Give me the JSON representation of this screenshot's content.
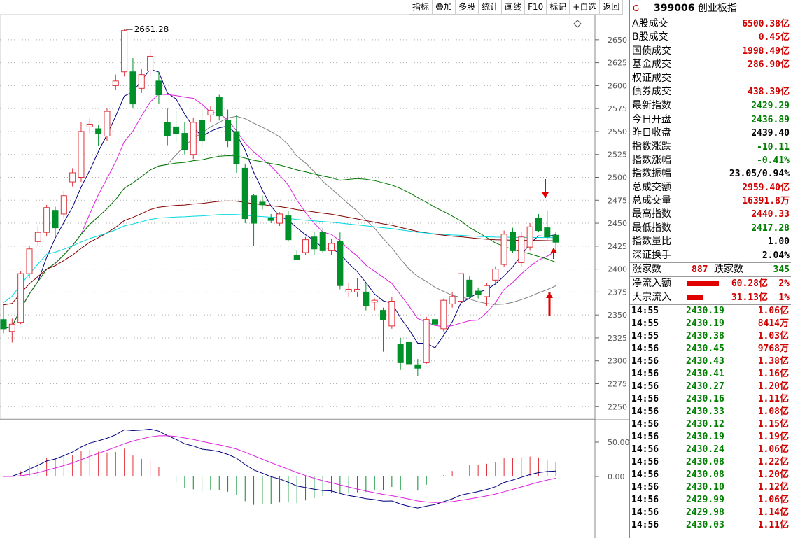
{
  "toolbar": {
    "items": [
      "指标",
      "叠加",
      "多股",
      "统计",
      "画线",
      "F10",
      "标记",
      "+自选",
      "返回"
    ]
  },
  "chart": {
    "high_label": "2661.28",
    "y_ticks": [
      "2650",
      "2625",
      "2600",
      "2575",
      "2550",
      "2525",
      "2500",
      "2475",
      "2450",
      "2425",
      "2400",
      "2375",
      "2350",
      "2325",
      "2300",
      "2275",
      "2250"
    ],
    "macd_ticks": [
      "50.00",
      "0.00"
    ]
  },
  "colors": {
    "up": "#e0303a",
    "down": "#00902a",
    "ma5": "#000080",
    "ma10": "#e020e0",
    "ma20": "#808080",
    "ma60": "#007800",
    "ma120": "#800000",
    "ma250": "#00d8e0"
  },
  "panel": {
    "code": "399006",
    "name": "创业板指",
    "g": "G",
    "section1": [
      {
        "label": "A股成交",
        "value": "6500.38亿",
        "color": "red"
      },
      {
        "label": "B股成交",
        "value": "0.45亿",
        "color": "red"
      },
      {
        "label": "国债成交",
        "value": "1998.49亿",
        "color": "red"
      },
      {
        "label": "基金成交",
        "value": "286.90亿",
        "color": "red"
      },
      {
        "label": "权证成交",
        "value": "",
        "color": "red"
      },
      {
        "label": "债券成交",
        "value": "438.39亿",
        "color": "red"
      }
    ],
    "section2": [
      {
        "label": "最新指数",
        "value": "2429.29",
        "color": "grn"
      },
      {
        "label": "今日开盘",
        "value": "2436.89",
        "color": "grn"
      },
      {
        "label": "昨日收盘",
        "value": "2439.40",
        "color": "blk"
      },
      {
        "label": "指数涨跌",
        "value": "-10.11",
        "color": "grn"
      },
      {
        "label": "指数涨幅",
        "value": "-0.41%",
        "color": "grn"
      },
      {
        "label": "指数振幅",
        "value": "23.05/0.94%",
        "color": "blk"
      },
      {
        "label": "总成交额",
        "value": "2959.40亿",
        "color": "red"
      },
      {
        "label": "总成交量",
        "value": "16391.8万",
        "color": "red"
      },
      {
        "label": "最高指数",
        "value": "2440.33",
        "color": "red"
      },
      {
        "label": "最低指数",
        "value": "2417.28",
        "color": "grn"
      },
      {
        "label": "指数量比",
        "value": "1.00",
        "color": "blk"
      },
      {
        "label": "深证换手",
        "value": "2.04%",
        "color": "blk"
      }
    ],
    "breadth": {
      "up_label": "涨家数",
      "up_count": "887",
      "down_label": "跌家数",
      "down_count": "345"
    },
    "flows": [
      {
        "label": "净流入额",
        "value": "60.28亿",
        "pct": "2%",
        "bar": 0.6
      },
      {
        "label": "大宗流入",
        "value": "31.13亿",
        "pct": "1%",
        "bar": 0.3
      }
    ],
    "ticks": [
      {
        "time": "14:55",
        "price": "2430.19",
        "vol": "1.06亿"
      },
      {
        "time": "14:55",
        "price": "2430.19",
        "vol": "8414万"
      },
      {
        "time": "14:55",
        "price": "2430.38",
        "vol": "1.03亿"
      },
      {
        "time": "14:56",
        "price": "2430.45",
        "vol": "9768万"
      },
      {
        "time": "14:56",
        "price": "2430.43",
        "vol": "1.38亿"
      },
      {
        "time": "14:56",
        "price": "2430.41",
        "vol": "1.16亿"
      },
      {
        "time": "14:56",
        "price": "2430.27",
        "vol": "1.20亿"
      },
      {
        "time": "14:56",
        "price": "2430.16",
        "vol": "1.11亿"
      },
      {
        "time": "14:56",
        "price": "2430.33",
        "vol": "1.08亿"
      },
      {
        "time": "14:56",
        "price": "2430.12",
        "vol": "1.15亿"
      },
      {
        "time": "14:56",
        "price": "2430.19",
        "vol": "1.19亿"
      },
      {
        "time": "14:56",
        "price": "2430.24",
        "vol": "1.06亿"
      },
      {
        "time": "14:56",
        "price": "2430.08",
        "vol": "1.22亿"
      },
      {
        "time": "14:56",
        "price": "2430.08",
        "vol": "1.20亿"
      },
      {
        "time": "14:56",
        "price": "2430.10",
        "vol": "1.12亿"
      },
      {
        "time": "14:56",
        "price": "2429.99",
        "vol": "1.06亿"
      },
      {
        "time": "14:56",
        "price": "2429.98",
        "vol": "1.14亿"
      },
      {
        "time": "14:56",
        "price": "2430.03",
        "vol": "1.11亿"
      }
    ]
  },
  "chart_data": {
    "type": "candlestick",
    "y_range": [
      2238,
      2672
    ],
    "candles": [
      {
        "o": 2345,
        "h": 2362,
        "l": 2330,
        "c": 2335
      },
      {
        "o": 2332,
        "h": 2346,
        "l": 2320,
        "c": 2340
      },
      {
        "o": 2342,
        "h": 2398,
        "l": 2340,
        "c": 2395
      },
      {
        "o": 2395,
        "h": 2425,
        "l": 2390,
        "c": 2422
      },
      {
        "o": 2430,
        "h": 2447,
        "l": 2425,
        "c": 2440
      },
      {
        "o": 2440,
        "h": 2470,
        "l": 2436,
        "c": 2467
      },
      {
        "o": 2464,
        "h": 2468,
        "l": 2436,
        "c": 2445
      },
      {
        "o": 2460,
        "h": 2485,
        "l": 2455,
        "c": 2480
      },
      {
        "o": 2495,
        "h": 2510,
        "l": 2490,
        "c": 2505
      },
      {
        "o": 2500,
        "h": 2560,
        "l": 2495,
        "c": 2550
      },
      {
        "o": 2555,
        "h": 2565,
        "l": 2548,
        "c": 2558
      },
      {
        "o": 2553,
        "h": 2557,
        "l": 2534,
        "c": 2548
      },
      {
        "o": 2545,
        "h": 2575,
        "l": 2540,
        "c": 2572
      },
      {
        "o": 2600,
        "h": 2612,
        "l": 2595,
        "c": 2605
      },
      {
        "o": 2615,
        "h": 2661.28,
        "l": 2610,
        "c": 2660
      },
      {
        "o": 2615,
        "h": 2630,
        "l": 2575,
        "c": 2580
      },
      {
        "o": 2597,
        "h": 2618,
        "l": 2592,
        "c": 2612
      },
      {
        "o": 2616,
        "h": 2640,
        "l": 2610,
        "c": 2632
      },
      {
        "o": 2605,
        "h": 2615,
        "l": 2580,
        "c": 2590
      },
      {
        "o": 2560,
        "h": 2575,
        "l": 2535,
        "c": 2545
      },
      {
        "o": 2555,
        "h": 2572,
        "l": 2538,
        "c": 2548
      },
      {
        "o": 2548,
        "h": 2560,
        "l": 2525,
        "c": 2530
      },
      {
        "o": 2525,
        "h": 2565,
        "l": 2520,
        "c": 2560
      },
      {
        "o": 2562,
        "h": 2574,
        "l": 2533,
        "c": 2540
      },
      {
        "o": 2568,
        "h": 2578,
        "l": 2560,
        "c": 2573
      },
      {
        "o": 2587,
        "h": 2590,
        "l": 2562,
        "c": 2567
      },
      {
        "o": 2562,
        "h": 2574,
        "l": 2533,
        "c": 2540
      },
      {
        "o": 2550,
        "h": 2568,
        "l": 2505,
        "c": 2515
      },
      {
        "o": 2510,
        "h": 2515,
        "l": 2450,
        "c": 2455
      },
      {
        "o": 2480,
        "h": 2482,
        "l": 2425,
        "c": 2450
      },
      {
        "o": 2473,
        "h": 2480,
        "l": 2465,
        "c": 2470
      },
      {
        "o": 2455,
        "h": 2460,
        "l": 2450,
        "c": 2453
      },
      {
        "o": 2450,
        "h": 2462,
        "l": 2447,
        "c": 2460
      },
      {
        "o": 2458,
        "h": 2463,
        "l": 2430,
        "c": 2432
      },
      {
        "o": 2415,
        "h": 2420,
        "l": 2410,
        "c": 2410
      },
      {
        "o": 2418,
        "h": 2435,
        "l": 2415,
        "c": 2432
      },
      {
        "o": 2435,
        "h": 2440,
        "l": 2415,
        "c": 2422
      },
      {
        "o": 2440,
        "h": 2445,
        "l": 2418,
        "c": 2420
      },
      {
        "o": 2420,
        "h": 2433,
        "l": 2415,
        "c": 2428
      },
      {
        "o": 2430,
        "h": 2440,
        "l": 2378,
        "c": 2382
      },
      {
        "o": 2375,
        "h": 2385,
        "l": 2370,
        "c": 2378
      },
      {
        "o": 2375,
        "h": 2390,
        "l": 2370,
        "c": 2378
      },
      {
        "o": 2375,
        "h": 2385,
        "l": 2355,
        "c": 2360
      },
      {
        "o": 2364,
        "h": 2368,
        "l": 2355,
        "c": 2366
      },
      {
        "o": 2355,
        "h": 2358,
        "l": 2310,
        "c": 2345
      },
      {
        "o": 2338,
        "h": 2370,
        "l": 2335,
        "c": 2365
      },
      {
        "o": 2318,
        "h": 2325,
        "l": 2290,
        "c": 2298
      },
      {
        "o": 2320,
        "h": 2325,
        "l": 2290,
        "c": 2296
      },
      {
        "o": 2295,
        "h": 2302,
        "l": 2283,
        "c": 2292
      },
      {
        "o": 2298,
        "h": 2348,
        "l": 2296,
        "c": 2345
      },
      {
        "o": 2345,
        "h": 2350,
        "l": 2335,
        "c": 2340
      },
      {
        "o": 2335,
        "h": 2368,
        "l": 2332,
        "c": 2366
      },
      {
        "o": 2362,
        "h": 2375,
        "l": 2358,
        "c": 2370
      },
      {
        "o": 2365,
        "h": 2398,
        "l": 2360,
        "c": 2395
      },
      {
        "o": 2388,
        "h": 2392,
        "l": 2367,
        "c": 2370
      },
      {
        "o": 2376,
        "h": 2380,
        "l": 2368,
        "c": 2372
      },
      {
        "o": 2370,
        "h": 2385,
        "l": 2360,
        "c": 2382
      },
      {
        "o": 2388,
        "h": 2403,
        "l": 2384,
        "c": 2400
      },
      {
        "o": 2405,
        "h": 2442,
        "l": 2402,
        "c": 2438
      },
      {
        "o": 2440,
        "h": 2445,
        "l": 2418,
        "c": 2420
      },
      {
        "o": 2407,
        "h": 2440,
        "l": 2403,
        "c": 2435
      },
      {
        "o": 2424,
        "h": 2450,
        "l": 2420,
        "c": 2446
      },
      {
        "o": 2455,
        "h": 2460,
        "l": 2440,
        "c": 2442
      },
      {
        "o": 2445,
        "h": 2464,
        "l": 2432,
        "c": 2435
      },
      {
        "o": 2436.89,
        "h": 2440.33,
        "l": 2417.28,
        "c": 2429.29
      }
    ]
  }
}
